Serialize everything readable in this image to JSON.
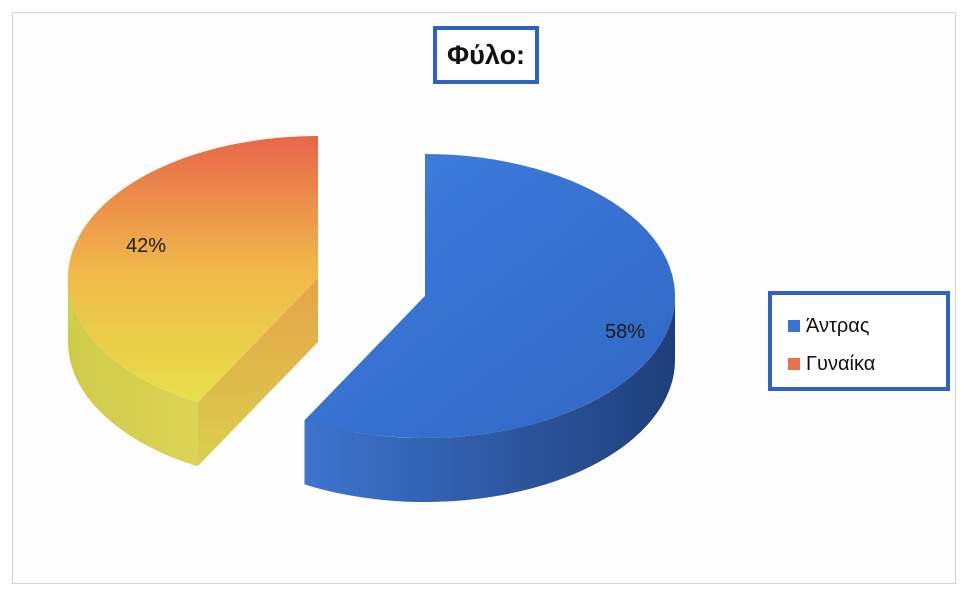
{
  "chart_data": {
    "type": "pie",
    "title": "Φύλο:",
    "categories": [
      "Άντρας",
      "Γυναίκα"
    ],
    "values": [
      58,
      42
    ],
    "labels": [
      "58%",
      "42%"
    ],
    "colors": [
      "#3b73d1",
      "#e6734a"
    ],
    "legend_position": "right",
    "style": "3d-exploded"
  }
}
